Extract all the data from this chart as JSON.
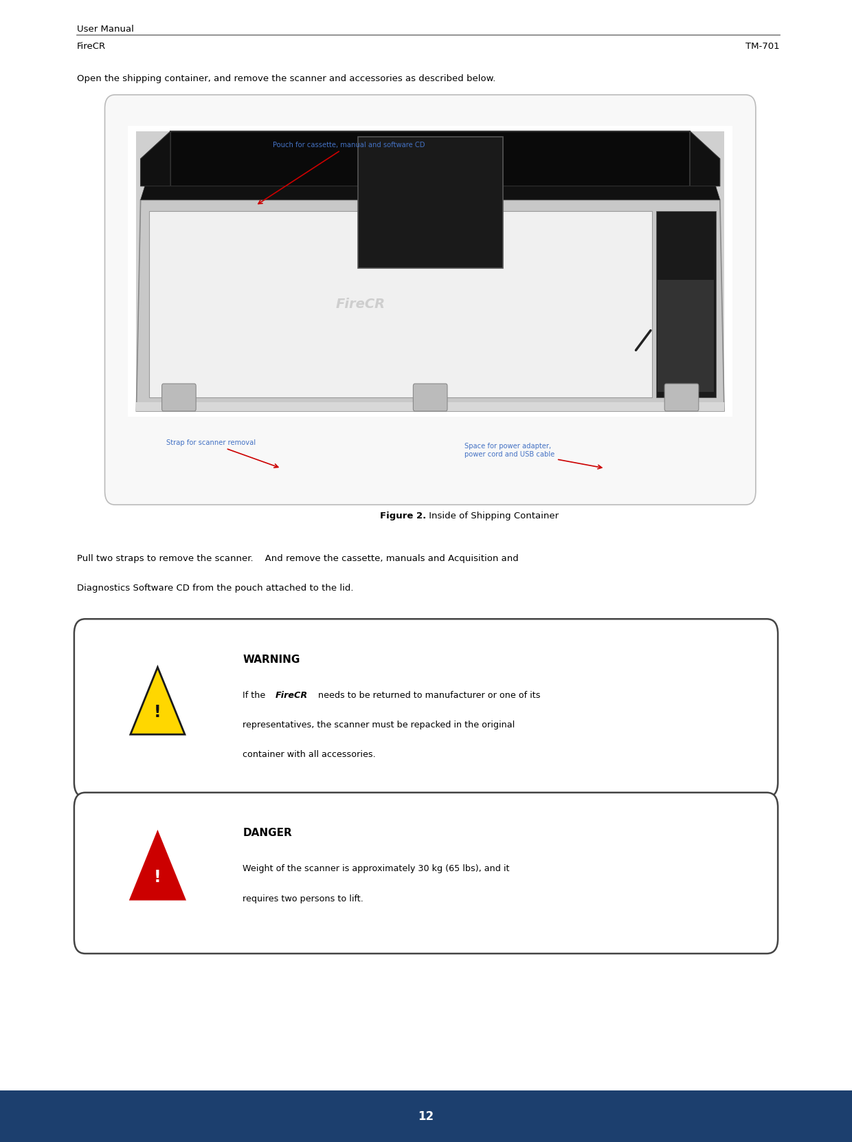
{
  "page_width": 12.4,
  "page_height": 16.61,
  "bg_color": "#ffffff",
  "header_line_color": "#808080",
  "header_text_left": "User Manual",
  "header_text_left2": "FireCR",
  "header_text_right": "TM-701",
  "footer_bg_color": "#1c3f6e",
  "footer_text": "12",
  "footer_text_color": "#ffffff",
  "intro_text": "Open the shipping container, and remove the scanner and accessories as described below.",
  "figure_caption_bold": "Figure 2.",
  "figure_caption_normal": " Inside of Shipping Container",
  "body_text_line1": "Pull two straps to remove the scanner.    And remove the cassette, manuals and Acquisition and",
  "body_text_line2": "Diagnostics Software CD from the pouch attached to the lid.",
  "warning_title": "WARNING",
  "danger_title": "DANGER",
  "label_pouch": "Pouch for cassette, manual and software CD",
  "label_strap": "Strap for scanner removal",
  "label_space": "Space for power adapter,\npower cord and USB cable",
  "label_color": "#4472c4",
  "arrow_color": "#cc0000",
  "box_border_color": "#bbbbbb",
  "warn_border_color": "#444444",
  "text_color": "#000000"
}
